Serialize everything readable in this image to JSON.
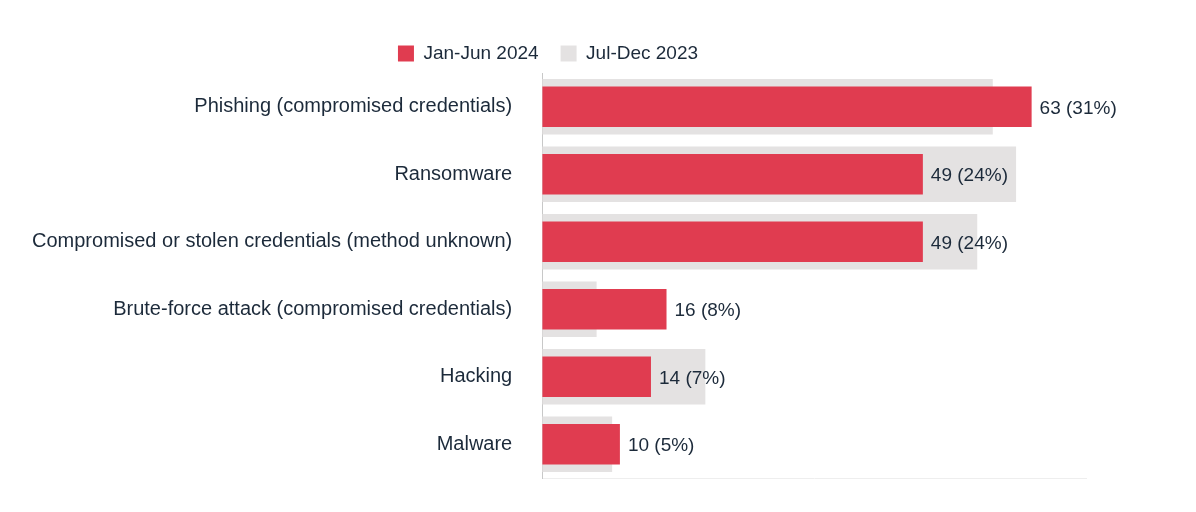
{
  "chart_data": {
    "type": "bar",
    "orientation": "horizontal",
    "categories": [
      "Phishing (compromised credentials)",
      "Ransomware",
      "Compromised or stolen credentials (method unknown)",
      "Brute-force attack (compromised credentials)",
      "Hacking",
      "Malware"
    ],
    "series": [
      {
        "name": "Jul-Dec 2023",
        "color": "#e4e2e2",
        "values": [
          58,
          61,
          56,
          7,
          21,
          9
        ]
      },
      {
        "name": "Jan-Jun 2024",
        "color": "#e03c50",
        "values": [
          63,
          49,
          49,
          16,
          14,
          10
        ],
        "value_labels": [
          "63 (31%)",
          "49 (24%)",
          "49 (24%)",
          "16 (8%)",
          "14 (7%)",
          "10 (5%)"
        ]
      }
    ],
    "xlim": [
      0,
      70
    ],
    "grid": false,
    "legend": "top",
    "data_labels": true,
    "tick_labels": "y"
  }
}
